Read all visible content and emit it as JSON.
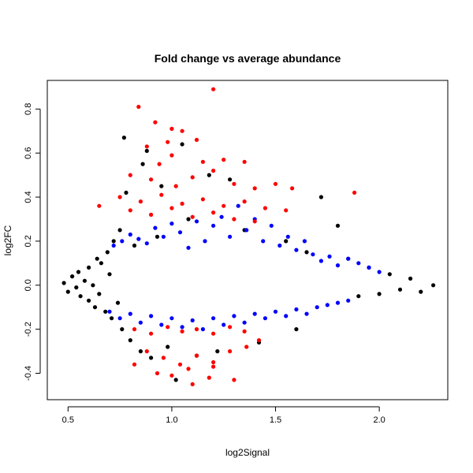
{
  "chart_data": {
    "type": "scatter",
    "title": "Fold change vs average abundance",
    "xlabel": "log2Signal",
    "ylabel": "log2FC",
    "xlim": [
      0.4,
      2.33
    ],
    "ylim": [
      -0.52,
      0.93
    ],
    "xticks": [
      0.5,
      1.0,
      1.5,
      2.0
    ],
    "xtick_labels": [
      "0.5",
      "1.0",
      "1.5",
      "2.0"
    ],
    "yticks": [
      -0.4,
      -0.2,
      0.0,
      0.2,
      0.4,
      0.6,
      0.8
    ],
    "ytick_labels": [
      "-0.4",
      "-0.2",
      "0.0",
      "0.2",
      "0.4",
      "0.6",
      "0.8"
    ],
    "grid": false,
    "legend": "none",
    "colors": {
      "not_significant": "#000000",
      "significant": "#0000ff",
      "significant_large_fc": "#ff0000"
    },
    "series": [
      {
        "color": "#000000",
        "points": [
          [
            0.48,
            0.01
          ],
          [
            0.5,
            -0.03
          ],
          [
            0.52,
            0.04
          ],
          [
            0.54,
            -0.01
          ],
          [
            0.55,
            0.06
          ],
          [
            0.56,
            -0.05
          ],
          [
            0.58,
            0.02
          ],
          [
            0.6,
            -0.07
          ],
          [
            0.6,
            0.08
          ],
          [
            0.62,
            0.0
          ],
          [
            0.63,
            -0.1
          ],
          [
            0.64,
            0.12
          ],
          [
            0.65,
            -0.04
          ],
          [
            0.66,
            0.1
          ],
          [
            0.68,
            -0.12
          ],
          [
            0.69,
            0.15
          ],
          [
            0.7,
            0.05
          ],
          [
            0.71,
            -0.15
          ],
          [
            0.72,
            0.2
          ],
          [
            0.74,
            -0.08
          ],
          [
            0.75,
            0.25
          ],
          [
            0.76,
            -0.2
          ],
          [
            0.77,
            0.67
          ],
          [
            0.78,
            0.42
          ],
          [
            0.8,
            -0.25
          ],
          [
            0.82,
            0.18
          ],
          [
            0.85,
            -0.3
          ],
          [
            0.86,
            0.55
          ],
          [
            0.88,
            0.61
          ],
          [
            0.9,
            -0.33
          ],
          [
            0.93,
            0.22
          ],
          [
            0.95,
            0.45
          ],
          [
            0.98,
            -0.28
          ],
          [
            1.02,
            -0.43
          ],
          [
            1.05,
            0.64
          ],
          [
            1.08,
            0.3
          ],
          [
            1.12,
            -0.32
          ],
          [
            1.18,
            0.5
          ],
          [
            1.22,
            -0.3
          ],
          [
            1.28,
            0.48
          ],
          [
            1.35,
            0.25
          ],
          [
            1.42,
            -0.26
          ],
          [
            1.55,
            0.2
          ],
          [
            1.6,
            -0.2
          ],
          [
            1.65,
            0.15
          ],
          [
            1.72,
            0.4
          ],
          [
            1.8,
            0.27
          ],
          [
            1.85,
            0.12
          ],
          [
            1.9,
            -0.05
          ],
          [
            1.95,
            0.08
          ],
          [
            2.0,
            -0.04
          ],
          [
            2.05,
            0.05
          ],
          [
            2.1,
            -0.02
          ],
          [
            2.15,
            0.03
          ],
          [
            2.2,
            -0.03
          ],
          [
            2.26,
            0.0
          ]
        ]
      },
      {
        "color": "#0000ff",
        "points": [
          [
            0.72,
            0.18
          ],
          [
            0.76,
            0.2
          ],
          [
            0.8,
            0.23
          ],
          [
            0.84,
            0.21
          ],
          [
            0.88,
            0.19
          ],
          [
            0.92,
            0.26
          ],
          [
            0.96,
            0.22
          ],
          [
            1.0,
            0.28
          ],
          [
            1.04,
            0.24
          ],
          [
            1.08,
            0.17
          ],
          [
            1.12,
            0.29
          ],
          [
            1.16,
            0.2
          ],
          [
            1.2,
            0.27
          ],
          [
            1.24,
            0.31
          ],
          [
            1.28,
            0.22
          ],
          [
            1.32,
            0.36
          ],
          [
            1.36,
            0.25
          ],
          [
            1.4,
            0.3
          ],
          [
            1.44,
            0.2
          ],
          [
            1.48,
            0.27
          ],
          [
            1.52,
            0.18
          ],
          [
            1.56,
            0.22
          ],
          [
            1.6,
            0.16
          ],
          [
            1.64,
            0.2
          ],
          [
            1.68,
            0.14
          ],
          [
            1.72,
            0.11
          ],
          [
            1.76,
            0.13
          ],
          [
            1.8,
            0.09
          ],
          [
            1.85,
            0.12
          ],
          [
            1.9,
            0.1
          ],
          [
            1.95,
            0.08
          ],
          [
            2.0,
            0.06
          ],
          [
            0.7,
            -0.12
          ],
          [
            0.75,
            -0.15
          ],
          [
            0.8,
            -0.13
          ],
          [
            0.85,
            -0.17
          ],
          [
            0.9,
            -0.14
          ],
          [
            0.95,
            -0.18
          ],
          [
            1.0,
            -0.15
          ],
          [
            1.05,
            -0.19
          ],
          [
            1.1,
            -0.16
          ],
          [
            1.15,
            -0.2
          ],
          [
            1.2,
            -0.15
          ],
          [
            1.25,
            -0.18
          ],
          [
            1.3,
            -0.14
          ],
          [
            1.35,
            -0.17
          ],
          [
            1.4,
            -0.13
          ],
          [
            1.45,
            -0.15
          ],
          [
            1.5,
            -0.12
          ],
          [
            1.55,
            -0.14
          ],
          [
            1.6,
            -0.11
          ],
          [
            1.65,
            -0.13
          ],
          [
            1.7,
            -0.1
          ],
          [
            1.75,
            -0.09
          ],
          [
            1.8,
            -0.08
          ],
          [
            1.85,
            -0.07
          ]
        ]
      },
      {
        "color": "#ff0000",
        "points": [
          [
            0.84,
            0.81
          ],
          [
            0.92,
            0.74
          ],
          [
            1.2,
            0.89
          ],
          [
            1.0,
            0.71
          ],
          [
            1.05,
            0.7
          ],
          [
            0.88,
            0.63
          ],
          [
            0.98,
            0.65
          ],
          [
            1.12,
            0.66
          ],
          [
            0.94,
            0.55
          ],
          [
            1.0,
            0.59
          ],
          [
            1.15,
            0.56
          ],
          [
            1.25,
            0.57
          ],
          [
            1.35,
            0.56
          ],
          [
            0.8,
            0.5
          ],
          [
            0.9,
            0.48
          ],
          [
            1.02,
            0.45
          ],
          [
            1.1,
            0.49
          ],
          [
            1.2,
            0.52
          ],
          [
            1.3,
            0.46
          ],
          [
            1.4,
            0.44
          ],
          [
            1.5,
            0.46
          ],
          [
            1.58,
            0.44
          ],
          [
            0.75,
            0.4
          ],
          [
            0.85,
            0.38
          ],
          [
            0.95,
            0.41
          ],
          [
            1.05,
            0.37
          ],
          [
            1.15,
            0.39
          ],
          [
            1.25,
            0.36
          ],
          [
            1.35,
            0.38
          ],
          [
            1.45,
            0.35
          ],
          [
            1.55,
            0.34
          ],
          [
            1.88,
            0.42
          ],
          [
            0.8,
            0.34
          ],
          [
            0.9,
            0.32
          ],
          [
            1.0,
            0.35
          ],
          [
            1.1,
            0.31
          ],
          [
            1.2,
            0.33
          ],
          [
            1.3,
            0.3
          ],
          [
            1.4,
            0.29
          ],
          [
            0.65,
            0.36
          ],
          [
            0.82,
            -0.2
          ],
          [
            0.9,
            -0.22
          ],
          [
            0.98,
            -0.19
          ],
          [
            1.05,
            -0.21
          ],
          [
            1.12,
            -0.2
          ],
          [
            1.2,
            -0.22
          ],
          [
            1.28,
            -0.19
          ],
          [
            1.35,
            -0.21
          ],
          [
            0.88,
            -0.3
          ],
          [
            0.96,
            -0.33
          ],
          [
            1.04,
            -0.36
          ],
          [
            1.12,
            -0.32
          ],
          [
            1.2,
            -0.35
          ],
          [
            1.28,
            -0.3
          ],
          [
            1.36,
            -0.28
          ],
          [
            1.42,
            -0.25
          ],
          [
            0.82,
            -0.36
          ],
          [
            0.93,
            -0.4
          ],
          [
            1.0,
            -0.41
          ],
          [
            1.08,
            -0.38
          ],
          [
            1.18,
            -0.42
          ],
          [
            1.3,
            -0.43
          ],
          [
            1.1,
            -0.45
          ],
          [
            1.2,
            -0.37
          ]
        ]
      }
    ]
  }
}
